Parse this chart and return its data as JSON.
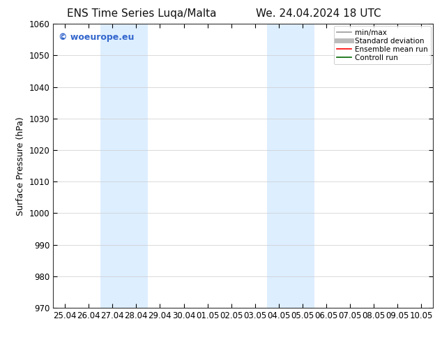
{
  "title_left": "ENS Time Series Luqa/Malta",
  "title_right": "We. 24.04.2024 18 UTC",
  "ylabel": "Surface Pressure (hPa)",
  "ylim": [
    970,
    1060
  ],
  "yticks": [
    970,
    980,
    990,
    1000,
    1010,
    1020,
    1030,
    1040,
    1050,
    1060
  ],
  "xtick_labels": [
    "25.04",
    "26.04",
    "27.04",
    "28.04",
    "29.04",
    "30.04",
    "01.05",
    "02.05",
    "03.05",
    "04.05",
    "05.05",
    "06.05",
    "07.05",
    "08.05",
    "09.05",
    "10.05"
  ],
  "background_color": "#ffffff",
  "plot_bg_color": "#ffffff",
  "shaded_bands": [
    {
      "xstart": 2.0,
      "xend": 4.0,
      "color": "#ddeeff"
    },
    {
      "xstart": 9.0,
      "xend": 11.0,
      "color": "#ddeeff"
    }
  ],
  "watermark": "© woeurope.eu",
  "watermark_color": "#3366cc",
  "legend_entries": [
    {
      "label": "min/max",
      "color": "#999999",
      "lw": 1.2,
      "style": "solid"
    },
    {
      "label": "Standard deviation",
      "color": "#bbbbbb",
      "lw": 5,
      "style": "solid"
    },
    {
      "label": "Ensemble mean run",
      "color": "#ff0000",
      "lw": 1.2,
      "style": "solid"
    },
    {
      "label": "Controll run",
      "color": "#006600",
      "lw": 1.2,
      "style": "solid"
    }
  ],
  "title_fontsize": 11,
  "tick_fontsize": 8.5,
  "label_fontsize": 9,
  "watermark_fontsize": 9,
  "legend_fontsize": 7.5
}
